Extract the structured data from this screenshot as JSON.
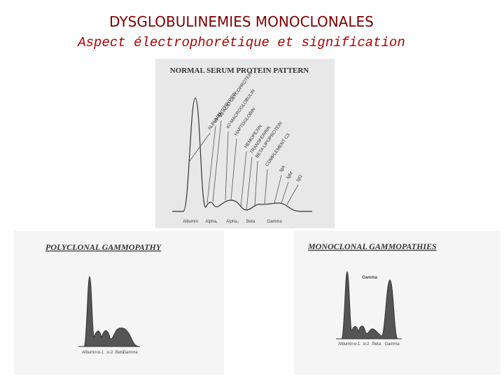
{
  "header": {
    "title": "DYSGLOBULINEMIES MONOCLONALES",
    "subtitle": "Aspect électrophorétique et signification"
  },
  "normal": {
    "title": "NORMAL SERUM PROTEIN PATTERN",
    "proteins": [
      "ALBUMIN",
      "α1-ANTITRYPSIN",
      "α1-ACID GLYCOPROTEIN",
      "α2-MACROGLOBULIN",
      "HAPTOGLOBIN",
      "HEMOPEXIN",
      "TRANSFERRIN",
      "BETA LIPOPROTEIN",
      "COMPLEMENT C3",
      "IgA",
      "IgM",
      "IgG"
    ],
    "fractions": [
      "Albumin",
      "Alpha₁",
      "Alpha₂",
      "Beta",
      "Gamma"
    ]
  },
  "polyclonal": {
    "title": "POLYCLONAL GAMMOPATHY",
    "fractions": [
      "Albumin",
      "α-1",
      "α-2",
      "Beta",
      "Gamma"
    ]
  },
  "monoclonal": {
    "title": "MONOCLONAL GAMMOPATHIES",
    "peak_label": "Gamma",
    "fractions": [
      "Albumin",
      "α-1",
      "α-2",
      "Beta",
      "Gamma"
    ]
  }
}
